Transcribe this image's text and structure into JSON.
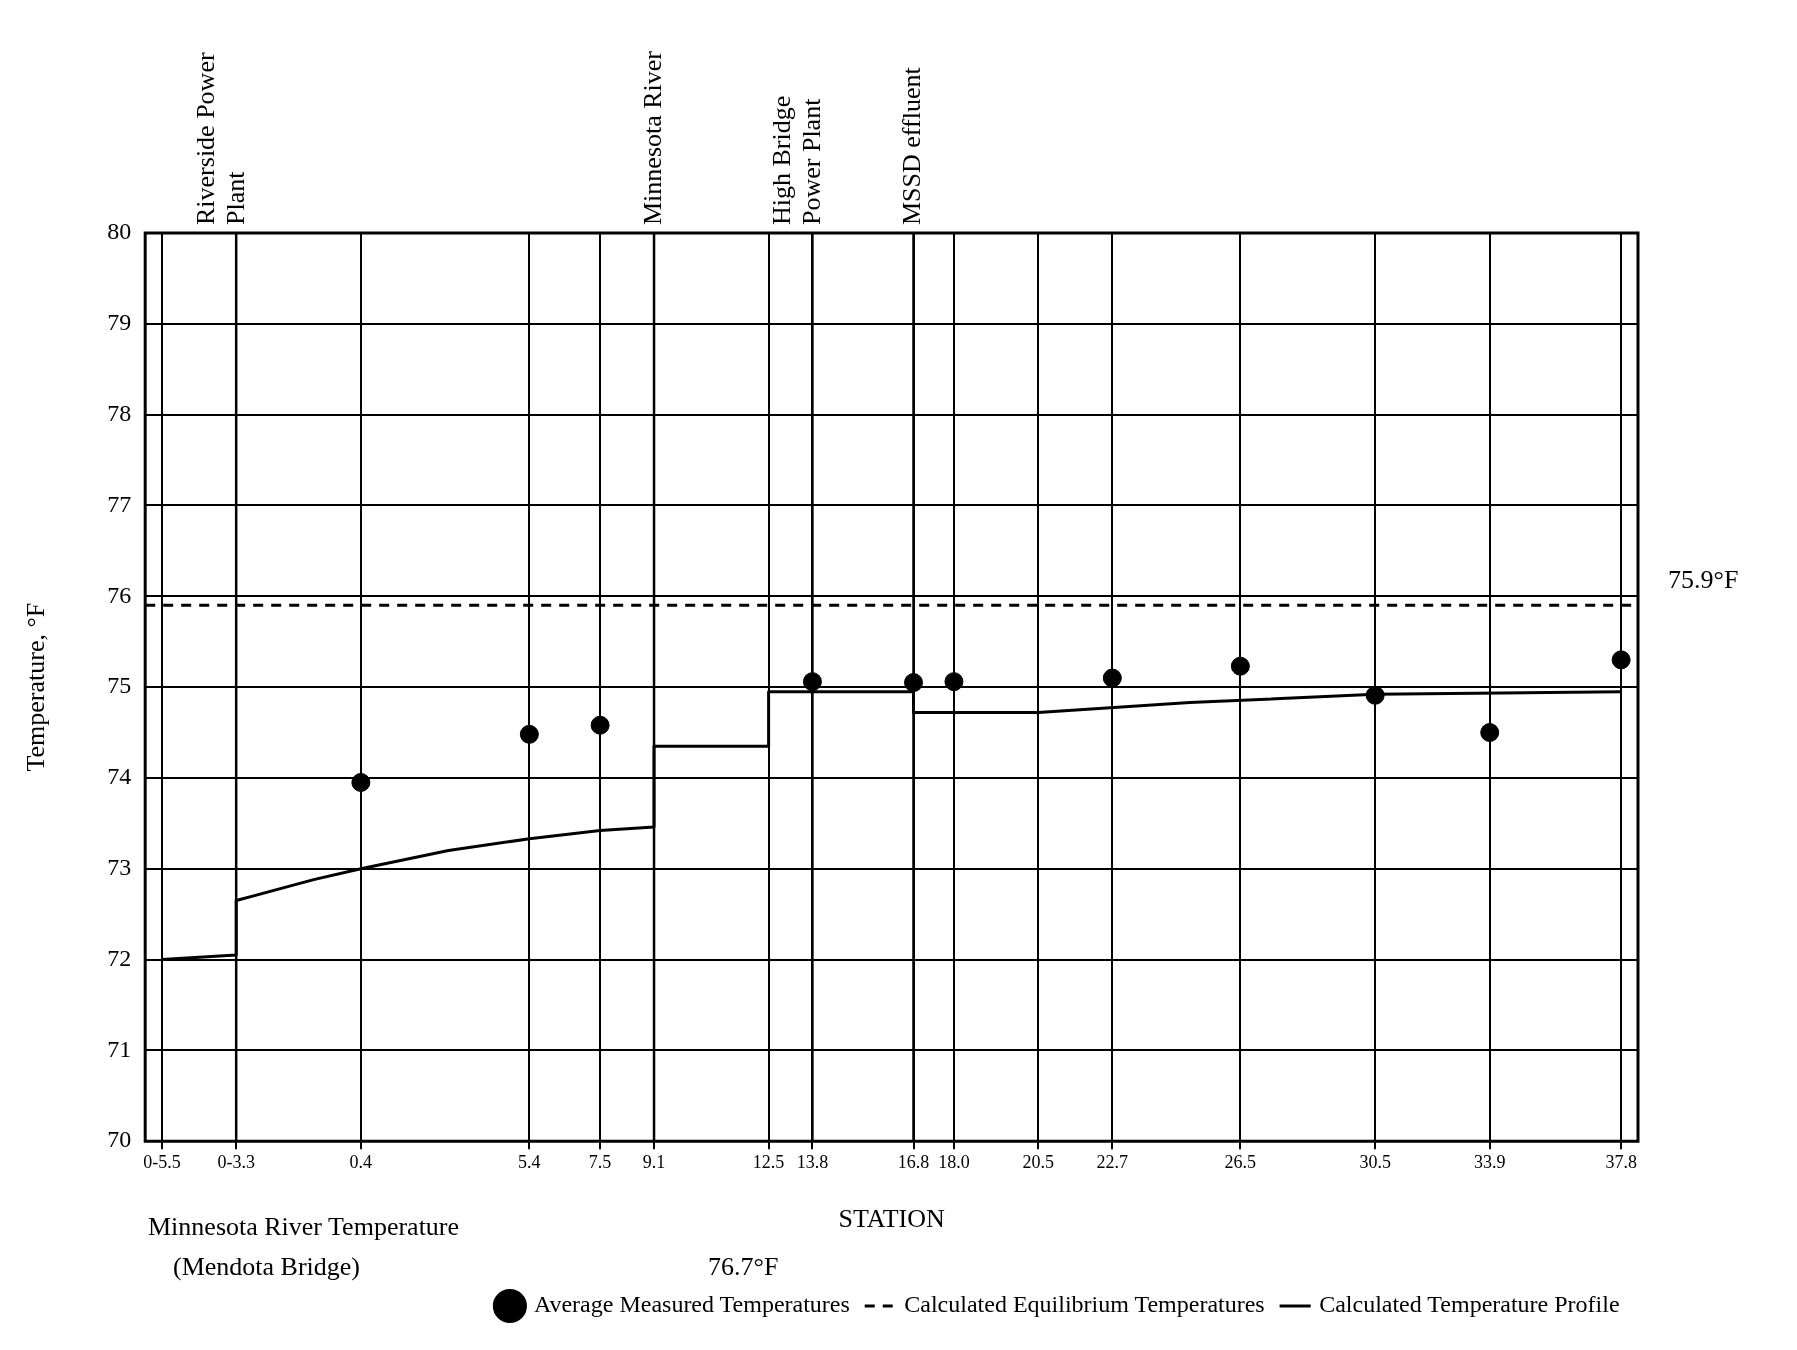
{
  "chart_data": {
    "type": "scatter",
    "xlabel": "STATION",
    "ylabel": "Temperature, °F",
    "xlim": [
      -6,
      38.3
    ],
    "ylim": [
      70,
      80
    ],
    "xticks": [
      {
        "value": -5.5,
        "label": "0-5.5"
      },
      {
        "value": -3.3,
        "label": "0-3.3"
      },
      {
        "value": 0.4,
        "label": "0.4"
      },
      {
        "value": 5.4,
        "label": "5.4"
      },
      {
        "value": 7.5,
        "label": "7.5"
      },
      {
        "value": 9.1,
        "label": "9.1"
      },
      {
        "value": 12.5,
        "label": "12.5"
      },
      {
        "value": 13.8,
        "label": "13.8"
      },
      {
        "value": 16.8,
        "label": "16.8"
      },
      {
        "value": 18.0,
        "label": "18.0"
      },
      {
        "value": 20.5,
        "label": "20.5"
      },
      {
        "value": 22.7,
        "label": "22.7"
      },
      {
        "value": 26.5,
        "label": "26.5"
      },
      {
        "value": 30.5,
        "label": "30.5"
      },
      {
        "value": 33.9,
        "label": "33.9"
      },
      {
        "value": 37.8,
        "label": "37.8"
      }
    ],
    "yticks": [
      70,
      71,
      72,
      73,
      74,
      75,
      76,
      77,
      78,
      79,
      80
    ],
    "grid": true,
    "legend": "bottom right",
    "series": [
      {
        "name": "Average Measured Temperatures",
        "type": "scatter",
        "marker": "circle",
        "color": "#000000",
        "x": [
          0.4,
          5.4,
          7.5,
          13.8,
          16.8,
          18.0,
          22.7,
          26.5,
          30.5,
          33.9,
          37.8
        ],
        "values": [
          73.95,
          74.48,
          74.58,
          75.06,
          75.05,
          75.06,
          75.1,
          75.23,
          74.91,
          74.5,
          75.3
        ]
      },
      {
        "name": "Calculated Equilibrium Temperatures",
        "type": "line",
        "marker": "none",
        "line_style": "dashed",
        "color": "#000000",
        "x": [
          -6,
          38.3
        ],
        "values": [
          75.9,
          75.9
        ]
      },
      {
        "name": "Calculated Temperature Profile",
        "type": "line",
        "marker": "none",
        "line_style": "solid",
        "color": "#000000",
        "x": [
          -5.5,
          -3.3,
          -3.3,
          -1,
          0.4,
          3,
          5.4,
          7.5,
          9.1,
          9.1,
          12.5,
          12.5,
          16.8,
          16.8,
          20.5,
          25,
          30.5,
          37.8
        ],
        "values": [
          72.0,
          72.05,
          72.65,
          72.88,
          73.0,
          73.2,
          73.33,
          73.42,
          73.46,
          74.35,
          74.35,
          74.95,
          74.95,
          74.72,
          74.72,
          74.83,
          74.92,
          74.95
        ]
      }
    ],
    "ref_lines": [
      {
        "axis": "x",
        "value": -3.3,
        "label": "Riverside Power Plant"
      },
      {
        "axis": "x",
        "value": 9.1,
        "label": "Minnesota River"
      },
      {
        "axis": "x",
        "value": 13.8,
        "label": "High Bridge Power Plant"
      },
      {
        "axis": "x",
        "value": 16.8,
        "label": "MSSD effluent"
      }
    ],
    "annotations": [
      {
        "text": "75.9°F",
        "x": 38.3,
        "y": 75.9
      },
      "Minnesota River Temperature (Mendota Bridge)",
      "76.7°F"
    ]
  }
}
